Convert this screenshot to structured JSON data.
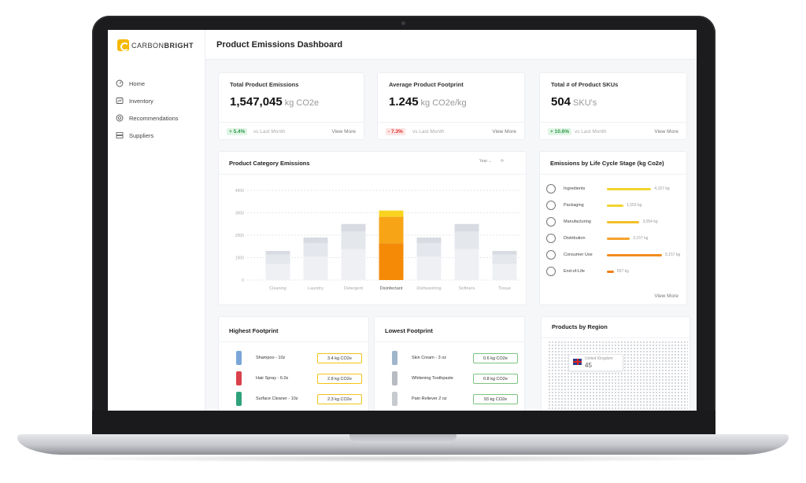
{
  "app": {
    "logo_word1": "CARBON",
    "logo_word2": "BRIGHT",
    "brand_color": "#f5b800",
    "page_title": "Product Emissions Dashboard"
  },
  "sidebar": {
    "items": [
      {
        "label": "Home",
        "icon": "home-gauge-icon"
      },
      {
        "label": "Inventory",
        "icon": "inventory-chart-icon"
      },
      {
        "label": "Recommendations",
        "icon": "recommendations-target-icon"
      },
      {
        "label": "Suppliers",
        "icon": "suppliers-list-icon"
      }
    ]
  },
  "kpis": [
    {
      "title": "Total Product Emissions",
      "value": "1,547,045",
      "unit": "kg CO2e",
      "change": "+ 5.4%",
      "direction": "up",
      "vs": "vs Last Month",
      "link": "View More"
    },
    {
      "title": "Average Product Footprint",
      "value": "1.245",
      "unit": "kg CO2e/kg",
      "change": "- 7.3%",
      "direction": "down",
      "vs": "vs Last Month",
      "link": "View More"
    },
    {
      "title": "Total # of Product SKUs",
      "value": "504",
      "unit": "SKU's",
      "change": "+ 10.6%",
      "direction": "up",
      "vs": "vs Last Month",
      "link": "View More"
    }
  ],
  "category_chart": {
    "title": "Product Category Emissions",
    "period": "Year"
  },
  "chart_data": {
    "type": "bar",
    "categories": [
      "Cleaning",
      "Laundry",
      "Detergent",
      "Disinfectant",
      "Dishwashing",
      "Softners",
      "Tissue"
    ],
    "values": [
      1300,
      1900,
      2500,
      3100,
      1900,
      2500,
      1300
    ],
    "highlight": "Disinfectant",
    "ylim": [
      0,
      4000
    ],
    "yticks": [
      "0",
      "1000",
      "2000",
      "3000",
      "4000"
    ],
    "grid": true
  },
  "life_cycle": {
    "title": "Emissions by Life Cycle Stage (kg Co2e)",
    "link": "View More",
    "stages": [
      {
        "label": "Ingredients",
        "value": "4,157 kg",
        "amount": 4157,
        "color": "#f2d42e",
        "icon": "ingredients-icon"
      },
      {
        "label": "Packaging",
        "value": "1,553 kg",
        "amount": 1553,
        "color": "#f2d42e",
        "icon": "packaging-icon"
      },
      {
        "label": "Manufacturing",
        "value": "3,054 kg",
        "amount": 3054,
        "color": "#f5bf28",
        "icon": "factory-icon"
      },
      {
        "label": "Distribution",
        "value": "2,157 kg",
        "amount": 2157,
        "color": "#f4a22a",
        "icon": "truck-icon"
      },
      {
        "label": "Consumer Use",
        "value": "5,157 kg",
        "amount": 5157,
        "color": "#f08c1f",
        "icon": "person-icon"
      },
      {
        "label": "End-of-Life",
        "value": "657 kg",
        "amount": 657,
        "color": "#ef8216",
        "icon": "recycle-bin-icon"
      }
    ]
  },
  "highest": {
    "title": "Highest Footprint",
    "items": [
      {
        "name": "Shampoo - 10z",
        "value": "3.4 kg CO2e",
        "color": "#7aa6d8"
      },
      {
        "name": "Hair Spray - 6.0z",
        "value": "2.8 kg CO2e",
        "color": "#d9414b"
      },
      {
        "name": "Surface Cleaner - 10z",
        "value": "2.3 kg CO2e",
        "color": "#2ea37a"
      }
    ]
  },
  "lowest": {
    "title": "Lowest Footprint",
    "items": [
      {
        "name": "Skin Cream - 3 oz",
        "value": "0.6 kg CO2e",
        "color": "#9fb5c9"
      },
      {
        "name": "Whitening Toothpaste",
        "value": "0.8 kg CO2e",
        "color": "#b8bcc2"
      },
      {
        "name": "Pain Reliever 2 oz",
        "value": "93 kg CO2e",
        "color": "#c7cacf"
      }
    ]
  },
  "regions": {
    "title": "Products by Region",
    "country": "United Kingdom",
    "count": "45"
  }
}
